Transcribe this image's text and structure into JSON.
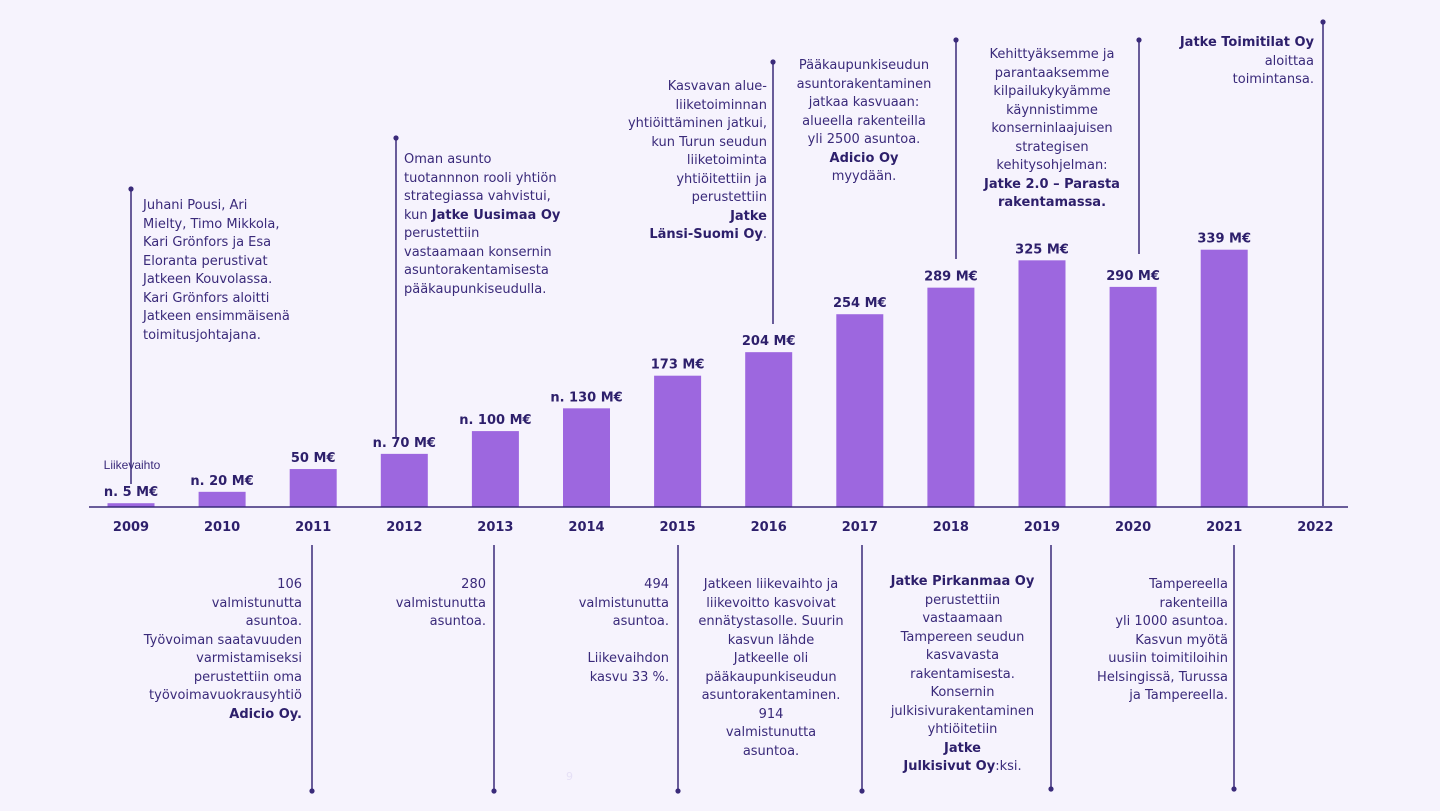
{
  "colors": {
    "bar": "#9d67df",
    "text": "#3a2a7a",
    "line": "#3a2a7a",
    "background": "#f6f3fd"
  },
  "chart_data": {
    "type": "bar",
    "categories": [
      "2009",
      "2010",
      "2011",
      "2012",
      "2013",
      "2014",
      "2015",
      "2016",
      "2017",
      "2018",
      "2019",
      "2020",
      "2021",
      "2022"
    ],
    "values": [
      5,
      20,
      50,
      70,
      100,
      130,
      173,
      204,
      254,
      289,
      325,
      290,
      339,
      null
    ],
    "value_labels": [
      "n. 5 M€",
      "n. 20 M€",
      "50 M€",
      "n. 70 M€",
      "n. 100 M€",
      "n. 130 M€",
      "173 M€",
      "204 M€",
      "254 M€",
      "289 M€",
      "325 M€",
      "290 M€",
      "339 M€",
      ""
    ],
    "series_label": "Liikevaihto",
    "unit": "M€",
    "ylim": [
      0,
      360
    ],
    "grid": false
  },
  "notes_top": [
    {
      "year": "2009",
      "parts": [
        {
          "t": "Juhani Pousi, Ari\nMielty, Timo Mikkola,\nKari Grönfors ja Esa\nEloranta perustivat\nJatkeen Kouvolassa.\nKari Grönfors aloitti\nJatkeen ensimmäisenä\ntoimitusjohtajana."
        }
      ]
    },
    {
      "year": "2012",
      "parts": [
        {
          "t": "Oman asunto\ntuotannnon rooli yhtiön\nstrategiassa vahvistui,\nkun "
        },
        {
          "t": "Jatke Uusimaa Oy",
          "b": true
        },
        {
          "t": "\nperustettiin\nvastaamaan konsernin\nasuntorakentamisesta\npääkaupunkiseudulla."
        }
      ]
    },
    {
      "year": "2016",
      "parts": [
        {
          "t": "Kasvavan alue-\nliiketoiminnan\nyhtiöittäminen jatkui,\nkun Turun seudun\nliiketoiminta\nyhtiöitettiin ja\nperustettiin\n"
        },
        {
          "t": "Jatke\nLänsi-Suomi Oy",
          "b": true
        },
        {
          "t": "."
        }
      ]
    },
    {
      "year": "2018",
      "parts": [
        {
          "t": "Pääkaupunkiseudun\nasuntorakentaminen\njatkaa kasvuaan:\nalueella rakenteilla\nyli 2500 asuntoa.\n"
        },
        {
          "t": "Adicio Oy",
          "b": true
        },
        {
          "t": "\nmyydään."
        }
      ]
    },
    {
      "year": "2020",
      "parts": [
        {
          "t": "Kehittyäksemme ja\nparantaaksemme\nkilpailukykyämme\nkäynnistimme\nkonserninlaajuisen\nstrategisen\nkehitysohjelman:\n"
        },
        {
          "t": "Jatke 2.0 – Parasta\nrakentamassa.",
          "b": true
        }
      ]
    },
    {
      "year": "2022",
      "parts": [
        {
          "t": "Jatke Toimitilat Oy",
          "b": true
        },
        {
          "t": "\naloittaa\ntoimintansa."
        }
      ]
    }
  ],
  "notes_bottom": [
    {
      "year": "2011",
      "parts": [
        {
          "t": "106\nvalmistunutta\nasuntoa.\nTyövoiman saatavuuden\nvarmistamiseksi\nperustettiin oma\ntyövoimavuokrausyhtiö\n"
        },
        {
          "t": "Adicio Oy.",
          "b": true
        }
      ]
    },
    {
      "year": "2013",
      "parts": [
        {
          "t": "280\nvalmistunutta\nasuntoa."
        }
      ]
    },
    {
      "year": "2015",
      "parts": [
        {
          "t": "494\nvalmistunutta\nasuntoa.\n\nLiikevaihdon\nkasvu 33 %."
        }
      ]
    },
    {
      "year": "2017",
      "parts": [
        {
          "t": "Jatkeen liikevaihto ja\nliikevoitto kasvoivat\nennätystasolle. Suurin\nkasvun lähde\nJatkeelle oli\npääkaupunkiseudun\nasuntorakentaminen.\n914\nvalmistunutta\nasuntoa."
        }
      ]
    },
    {
      "year": "2019",
      "parts": [
        {
          "t": "Jatke Pirkanmaa Oy",
          "b": true
        },
        {
          "t": "\nperustettiin\nvastaamaan\nTampereen seudun\nkasvavasta\nrakentamisesta.\nKonsernin\njulkisivurakentaminen\nyhtiöitetiin\n"
        },
        {
          "t": "Jatke\nJulkisivut Oy",
          "b": true
        },
        {
          "t": ":ksi."
        }
      ]
    },
    {
      "year": "2021",
      "parts": [
        {
          "t": "Tampereella\nrakenteilla\nyli 1000 asuntoa.\nKasvun myötä\nuusiin toimitiloihin\nHelsingissä, Turussa\nja Tampereella."
        }
      ]
    }
  ],
  "page_number": "9"
}
